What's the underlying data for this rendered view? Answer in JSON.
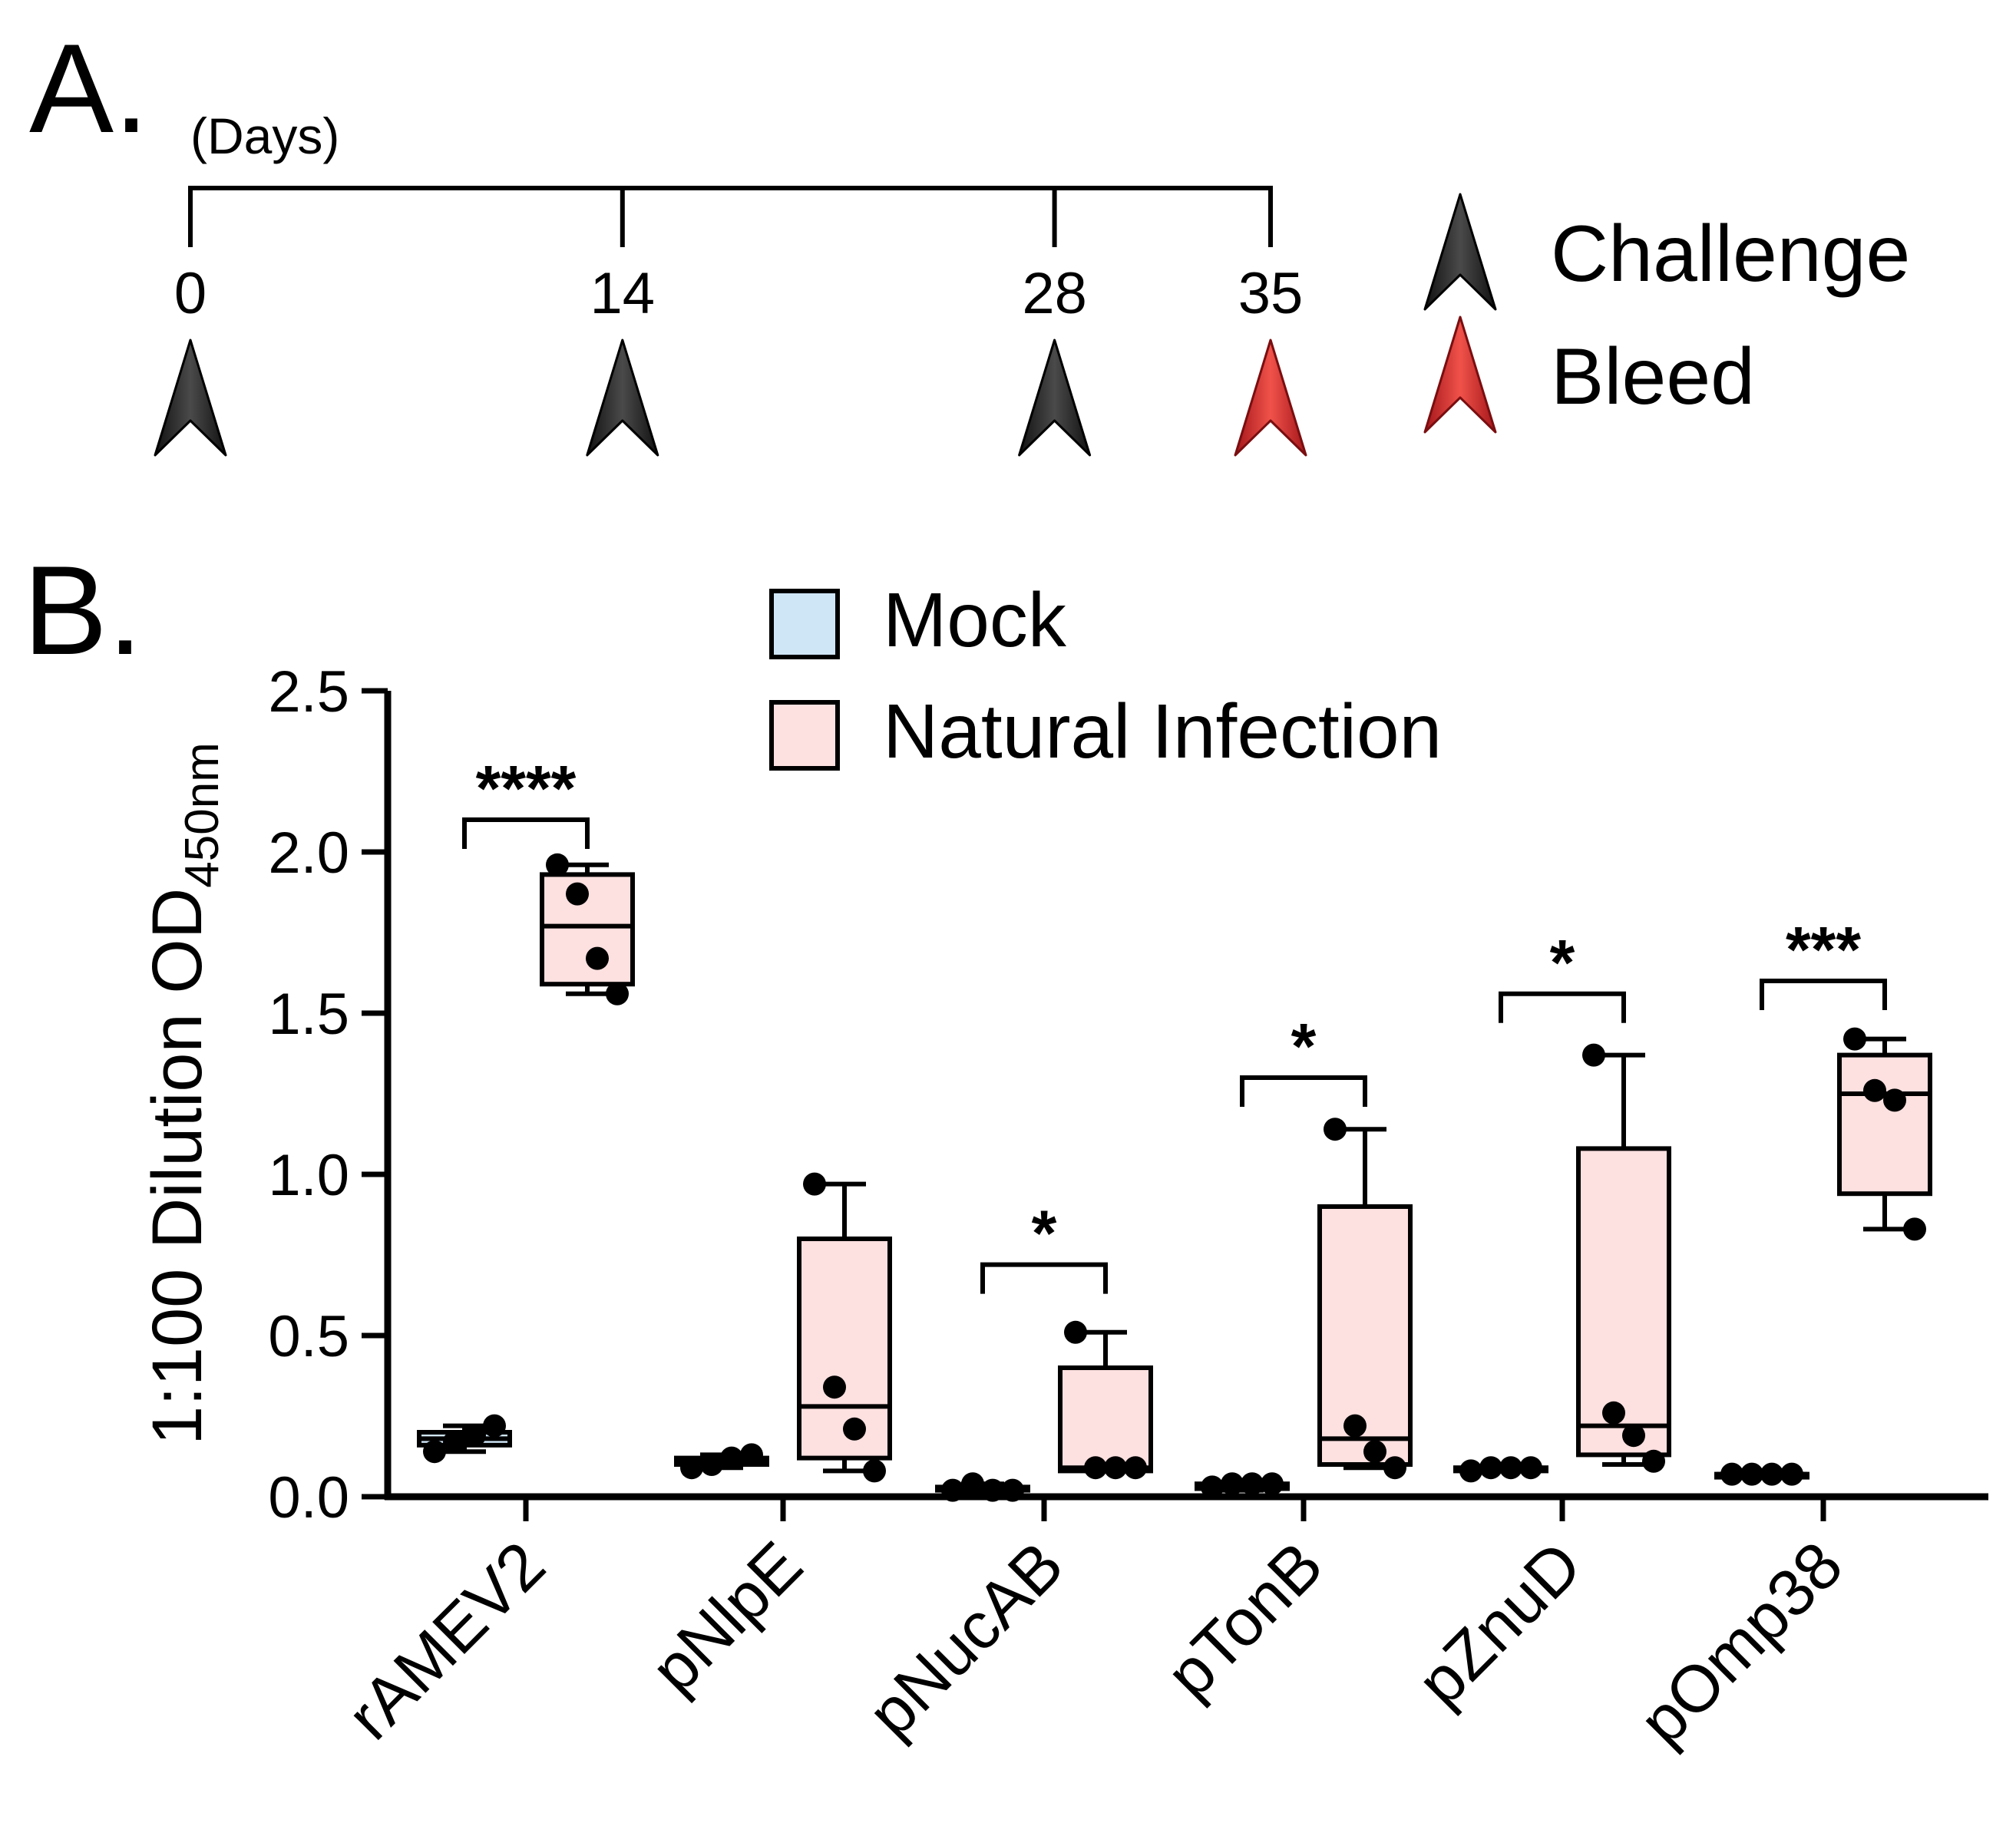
{
  "panels": {
    "a_label": "A.",
    "b_label": "B."
  },
  "timeline": {
    "title": "(Days)",
    "days": [
      {
        "day": "0",
        "event": "challenge"
      },
      {
        "day": "14",
        "event": "challenge"
      },
      {
        "day": "28",
        "event": "challenge"
      },
      {
        "day": "35",
        "event": "bleed"
      }
    ],
    "key": [
      {
        "event": "challenge",
        "label": "Challenge",
        "color": "#2f2f2f"
      },
      {
        "event": "bleed",
        "label": "Bleed",
        "color": "#d9312b"
      }
    ],
    "day_max": 35
  },
  "chart_data": {
    "type": "box",
    "title": "",
    "xlabel": "",
    "ylabel": "1:100 Dilution OD",
    "ylabel_subscript": "450nm",
    "ylim": [
      0,
      2.5
    ],
    "yticks": [
      "0.0",
      "0.5",
      "1.0",
      "1.5",
      "2.0",
      "2.5"
    ],
    "categories": [
      "rAMEV2",
      "pNlpE",
      "pNucAB",
      "pTonB",
      "pZnuD",
      "pOmp38"
    ],
    "series": [
      {
        "name": "Mock",
        "color": "#cfe6f7",
        "groups": [
          {
            "min": 0.14,
            "q1": 0.16,
            "median": 0.18,
            "q3": 0.2,
            "max": 0.22,
            "points": [
              0.14,
              0.17,
              0.19,
              0.22
            ]
          },
          {
            "min": 0.09,
            "q1": 0.1,
            "median": 0.11,
            "q3": 0.12,
            "max": 0.13,
            "points": [
              0.09,
              0.1,
              0.12,
              0.13
            ]
          },
          {
            "min": 0.015,
            "q1": 0.02,
            "median": 0.025,
            "q3": 0.03,
            "max": 0.04,
            "points": [
              0.02,
              0.04,
              0.02,
              0.02
            ]
          },
          {
            "min": 0.02,
            "q1": 0.025,
            "median": 0.03,
            "q3": 0.04,
            "max": 0.045,
            "points": [
              0.03,
              0.04,
              0.04,
              0.04
            ]
          },
          {
            "min": 0.08,
            "q1": 0.08,
            "median": 0.085,
            "q3": 0.09,
            "max": 0.09,
            "points": [
              0.08,
              0.09,
              0.09,
              0.09
            ]
          },
          {
            "min": 0.06,
            "q1": 0.065,
            "median": 0.07,
            "q3": 0.07,
            "max": 0.07,
            "points": [
              0.07,
              0.07,
              0.07,
              0.07
            ]
          }
        ]
      },
      {
        "name": "Natural Infection",
        "color": "#fde0e0",
        "groups": [
          {
            "min": 1.56,
            "q1": 1.59,
            "median": 1.77,
            "q3": 1.93,
            "max": 1.96,
            "points": [
              1.96,
              1.87,
              1.67,
              1.56
            ]
          },
          {
            "min": 0.08,
            "q1": 0.12,
            "median": 0.28,
            "q3": 0.8,
            "max": 0.97,
            "points": [
              0.97,
              0.34,
              0.21,
              0.08
            ]
          },
          {
            "min": 0.08,
            "q1": 0.08,
            "median": 0.09,
            "q3": 0.4,
            "max": 0.51,
            "points": [
              0.51,
              0.09,
              0.09,
              0.09
            ]
          },
          {
            "min": 0.09,
            "q1": 0.1,
            "median": 0.18,
            "q3": 0.9,
            "max": 1.14,
            "points": [
              1.14,
              0.22,
              0.14,
              0.09
            ]
          },
          {
            "min": 0.1,
            "q1": 0.13,
            "median": 0.22,
            "q3": 1.08,
            "max": 1.37,
            "points": [
              1.37,
              0.26,
              0.19,
              0.11
            ]
          },
          {
            "min": 0.83,
            "q1": 0.94,
            "median": 1.25,
            "q3": 1.37,
            "max": 1.42,
            "points": [
              1.42,
              1.26,
              1.23,
              0.83
            ]
          }
        ]
      }
    ],
    "significance": [
      {
        "category": "rAMEV2",
        "label": "****",
        "level": 2.1
      },
      {
        "category": "pNucAB",
        "label": "*",
        "level": 0.72
      },
      {
        "category": "pTonB",
        "label": "*",
        "level": 1.3
      },
      {
        "category": "pZnuD",
        "label": "*",
        "level": 1.56
      },
      {
        "category": "pOmp38",
        "label": "***",
        "level": 1.6
      }
    ],
    "legend": {
      "position": "top-center",
      "entries": [
        "Mock",
        "Natural Infection"
      ]
    }
  }
}
